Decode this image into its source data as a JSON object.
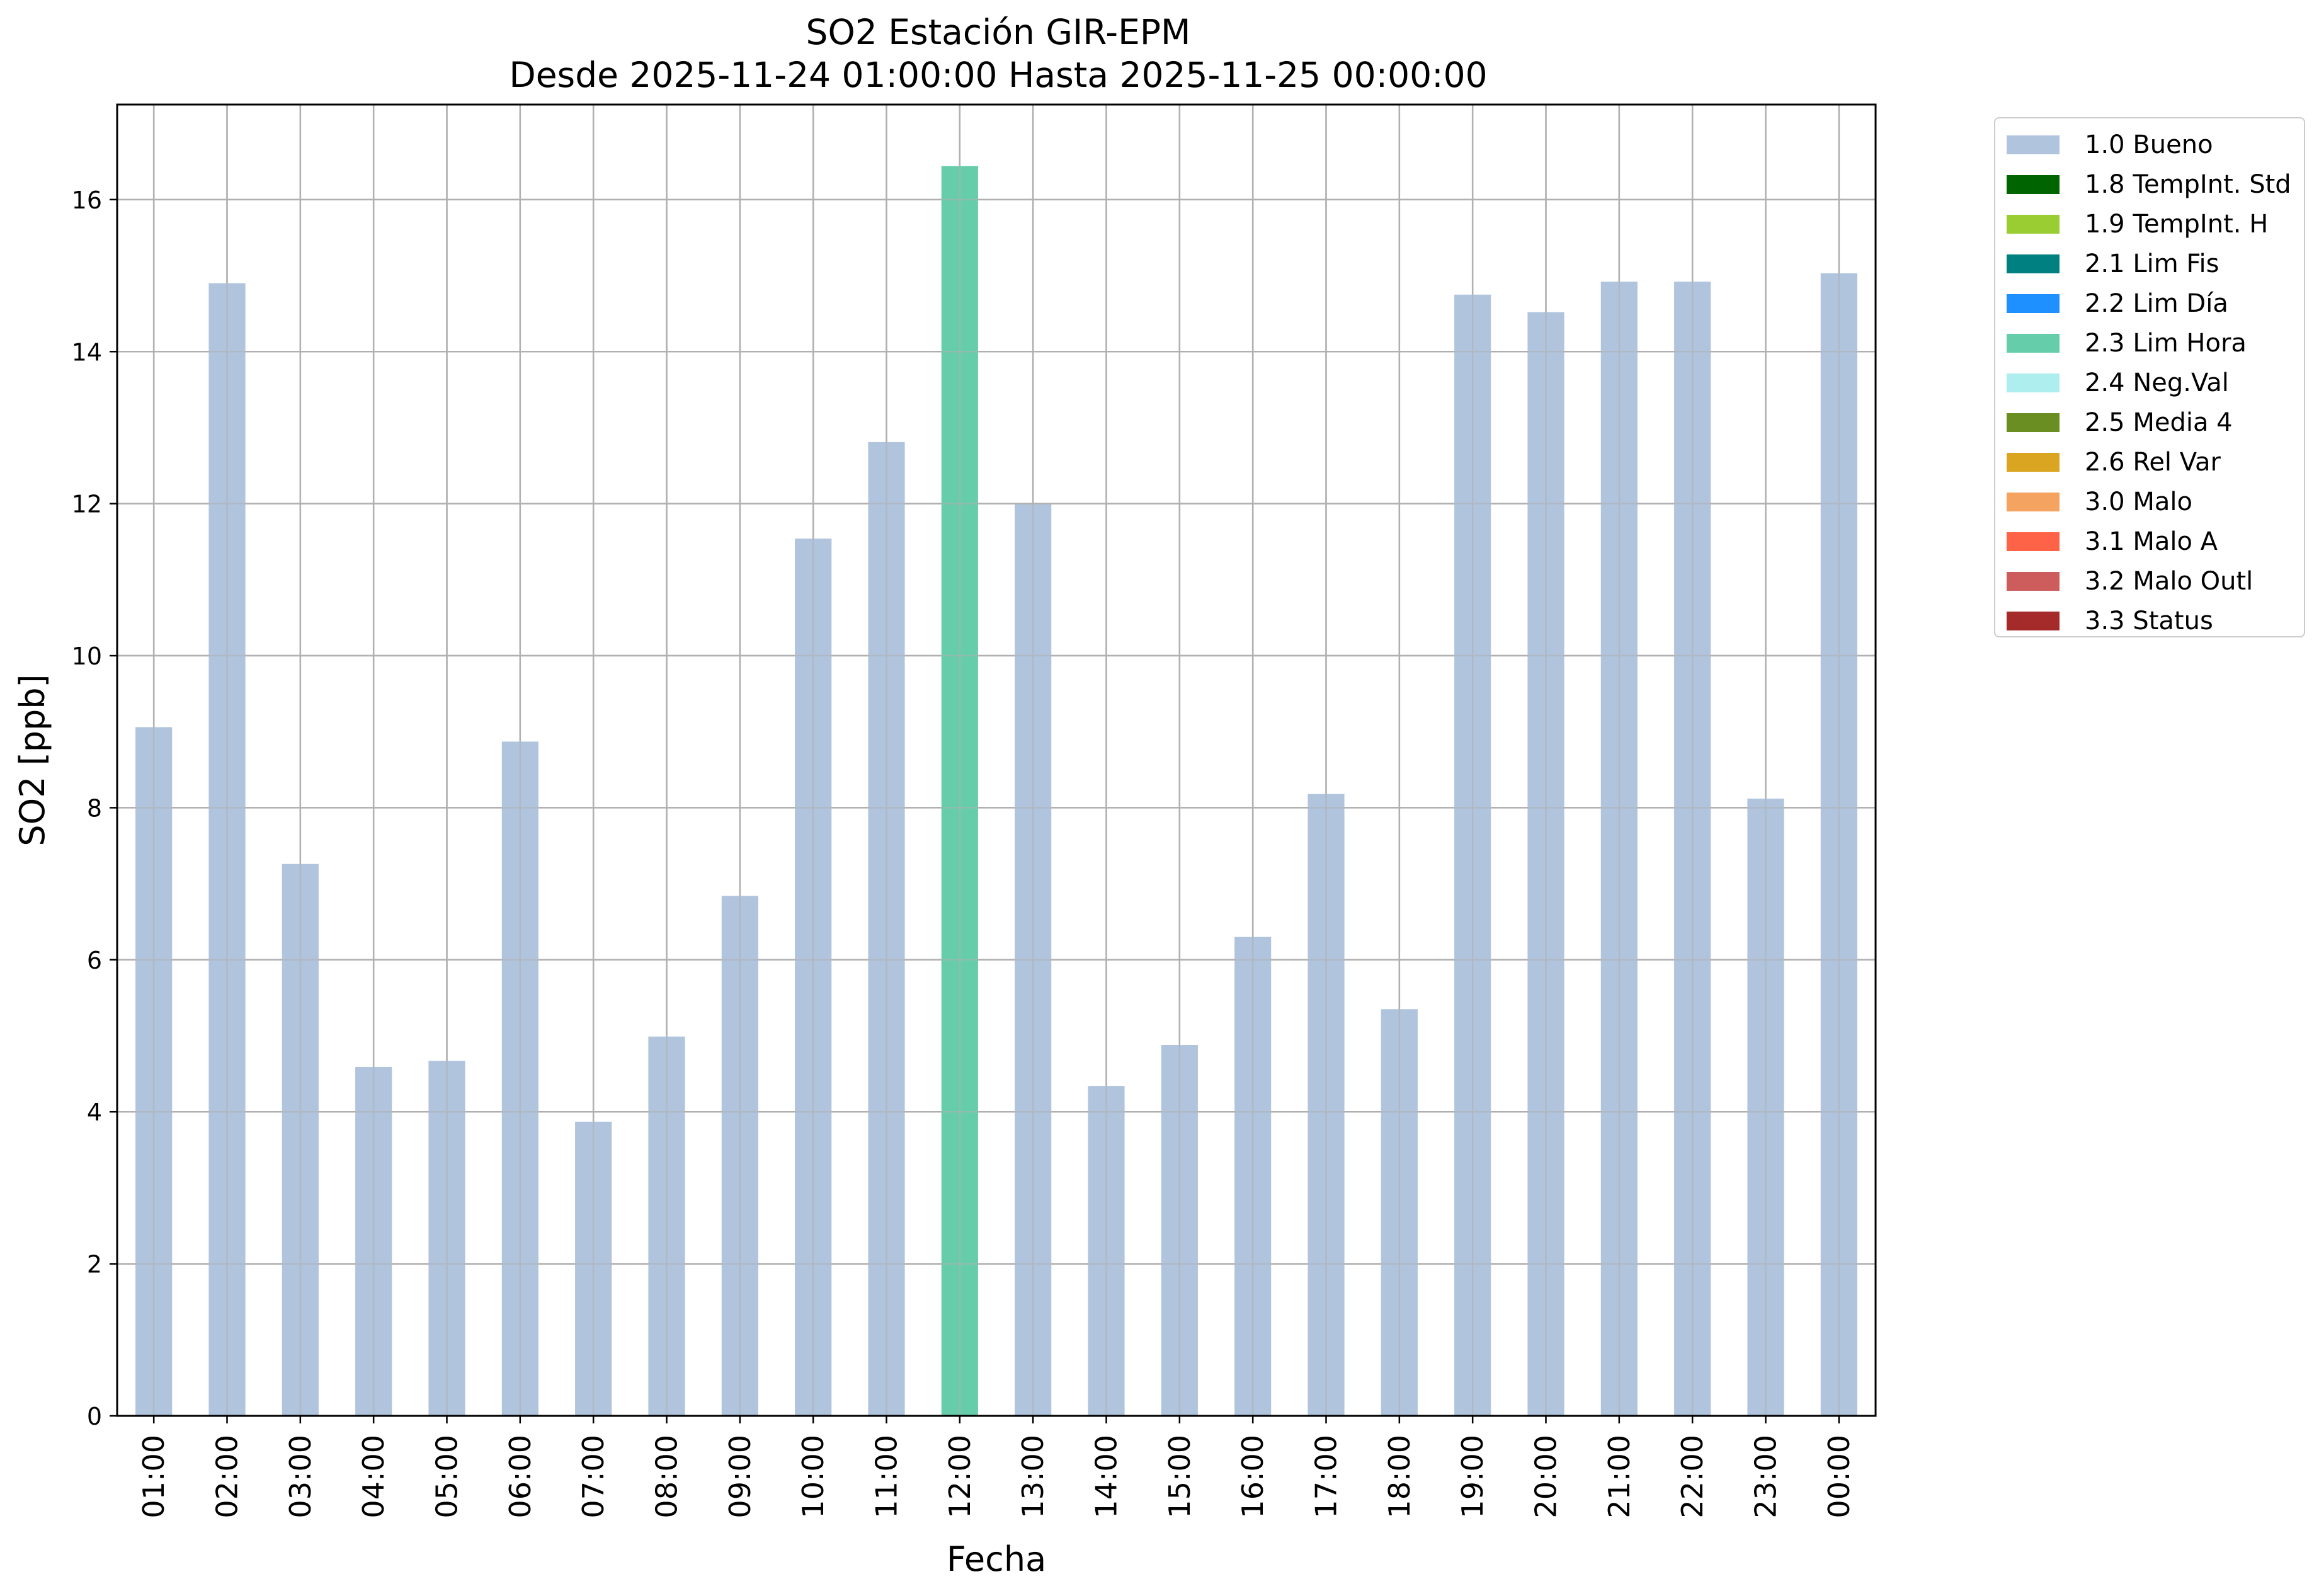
{
  "chart_data": {
    "type": "bar",
    "title": "SO2 Estación GIR-EPM",
    "subtitle": "Desde 2025-11-24 01:00:00 Hasta 2025-11-25 00:00:00",
    "xlabel": "Fecha",
    "ylabel": "SO2 [ppb]",
    "ylim": [
      0,
      17.25
    ],
    "yticks": [
      0,
      2,
      4,
      6,
      8,
      10,
      12,
      14,
      16
    ],
    "grid": true,
    "legend_position": "outside-top-right",
    "categories": [
      "01:00",
      "02:00",
      "03:00",
      "04:00",
      "05:00",
      "06:00",
      "07:00",
      "08:00",
      "09:00",
      "10:00",
      "11:00",
      "12:00",
      "13:00",
      "14:00",
      "15:00",
      "16:00",
      "17:00",
      "18:00",
      "19:00",
      "20:00",
      "21:00",
      "22:00",
      "23:00",
      "00:00"
    ],
    "values": [
      9.06,
      14.9,
      7.26,
      4.59,
      4.67,
      8.87,
      3.87,
      4.99,
      6.84,
      11.54,
      12.81,
      16.44,
      11.99,
      4.34,
      4.88,
      6.3,
      8.18,
      5.35,
      14.75,
      14.52,
      14.92,
      14.92,
      8.12,
      15.03
    ],
    "flags": [
      "1.0",
      "1.0",
      "1.0",
      "1.0",
      "1.0",
      "1.0",
      "1.0",
      "1.0",
      "1.0",
      "1.0",
      "1.0",
      "2.3",
      "1.0",
      "1.0",
      "1.0",
      "1.0",
      "1.0",
      "1.0",
      "1.0",
      "1.0",
      "1.0",
      "1.0",
      "1.0",
      "1.0"
    ],
    "legend": [
      {
        "code": "1.0",
        "label": "1.0 Bueno",
        "color": "#b0c4de"
      },
      {
        "code": "1.8",
        "label": "1.8 TempInt. Std",
        "color": "#006400"
      },
      {
        "code": "1.9",
        "label": "1.9 TempInt. H",
        "color": "#9acd32"
      },
      {
        "code": "2.1",
        "label": "2.1 Lim Fis",
        "color": "#008080"
      },
      {
        "code": "2.2",
        "label": "2.2 Lim Día",
        "color": "#1e90ff"
      },
      {
        "code": "2.3",
        "label": "2.3 Lim Hora",
        "color": "#66cdaa"
      },
      {
        "code": "2.4",
        "label": "2.4 Neg.Val",
        "color": "#afeeee"
      },
      {
        "code": "2.5",
        "label": "2.5 Media 4",
        "color": "#6b8e23"
      },
      {
        "code": "2.6",
        "label": "2.6 Rel Var",
        "color": "#daa520"
      },
      {
        "code": "3.0",
        "label": "3.0 Malo",
        "color": "#f4a460"
      },
      {
        "code": "3.1",
        "label": "3.1 Malo A",
        "color": "#ff6347"
      },
      {
        "code": "3.2",
        "label": "3.2 Malo Outl",
        "color": "#cd5c5c"
      },
      {
        "code": "3.3",
        "label": "3.3 Status",
        "color": "#a52a2a"
      }
    ]
  }
}
